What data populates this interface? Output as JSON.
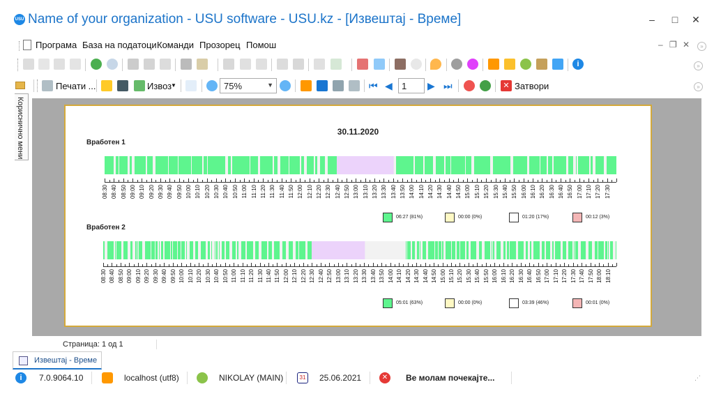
{
  "title": "Name of your organization - USU software - USU.kz - [Извештај - Време]",
  "window_controls": {
    "minimize": "–",
    "maximize": "□",
    "close": "✕"
  },
  "menu": [
    "Програма",
    "База на податоци",
    "Команди",
    "Прозорец",
    "Помош"
  ],
  "toolbar2": {
    "print_label": "Печати ...",
    "export_label": "Извоз",
    "zoom": "75%",
    "page": "1",
    "close_label": "Затвори"
  },
  "side_panel": {
    "label": "Кориснично мени"
  },
  "report": {
    "date": "30.11.2020",
    "employees": [
      {
        "name": "Вработен 1",
        "ticks": [
          "08:30",
          "08:40",
          "08:50",
          "09:00",
          "09:10",
          "09:20",
          "09:30",
          "09:40",
          "09:50",
          "10:00",
          "10:10",
          "10:20",
          "10:30",
          "10:40",
          "10:50",
          "11:00",
          "11:10",
          "11:20",
          "11:30",
          "11:40",
          "11:50",
          "12:00",
          "12:10",
          "12:20",
          "12:30",
          "12:40",
          "12:50",
          "13:00",
          "13:10",
          "13:20",
          "13:30",
          "13:40",
          "13:50",
          "14:00",
          "14:10",
          "14:20",
          "14:30",
          "14:40",
          "14:50",
          "15:00",
          "15:10",
          "15:20",
          "15:30",
          "15:40",
          "15:50",
          "16:00",
          "16:10",
          "16:20",
          "16:30",
          "16:40",
          "16:50",
          "17:00",
          "17:10",
          "17:20",
          "17:30"
        ],
        "legend": [
          "06:27 (81%)",
          "00:00 (0%)",
          "01:20 (17%)",
          "00:12 (3%)"
        ]
      },
      {
        "name": "Вработен 2",
        "ticks": [
          "08:30",
          "08:40",
          "08:50",
          "09:00",
          "09:10",
          "09:20",
          "09:30",
          "09:40",
          "09:50",
          "10:00",
          "10:10",
          "10:20",
          "10:30",
          "10:40",
          "10:50",
          "11:00",
          "11:10",
          "11:20",
          "11:30",
          "11:40",
          "11:50",
          "12:00",
          "12:10",
          "12:20",
          "12:30",
          "12:40",
          "12:50",
          "13:00",
          "13:10",
          "13:20",
          "13:30",
          "13:40",
          "13:50",
          "14:00",
          "14:10",
          "14:20",
          "14:30",
          "14:40",
          "14:50",
          "15:00",
          "15:10",
          "15:20",
          "15:30",
          "15:40",
          "15:50",
          "16:00",
          "16:10",
          "16:20",
          "16:30",
          "16:40",
          "16:50",
          "17:00",
          "17:10",
          "17:20",
          "17:30",
          "17:40",
          "17:50",
          "18:00",
          "18:10"
        ],
        "legend": [
          "05:01 (63%)",
          "00:00 (0%)",
          "03:39 (46%)",
          "00:01 (0%)"
        ]
      }
    ],
    "legend_colors": [
      "#5ef58e",
      "#fff9c4",
      "#ffffff",
      "#f4b6b6"
    ],
    "colors": {
      "active": "#5ef58e",
      "break": "#ecd3fb",
      "idle": "#f2f2f2"
    }
  },
  "page_status": "Страница: 1 од 1",
  "doc_tab": "Извештај - Време",
  "statusbar": {
    "version": "7.0.9064.10",
    "db": "localhost (utf8)",
    "user": "NIKOLAY (MAIN)",
    "date": "25.06.2021",
    "message": "Ве молам почекајте..."
  }
}
